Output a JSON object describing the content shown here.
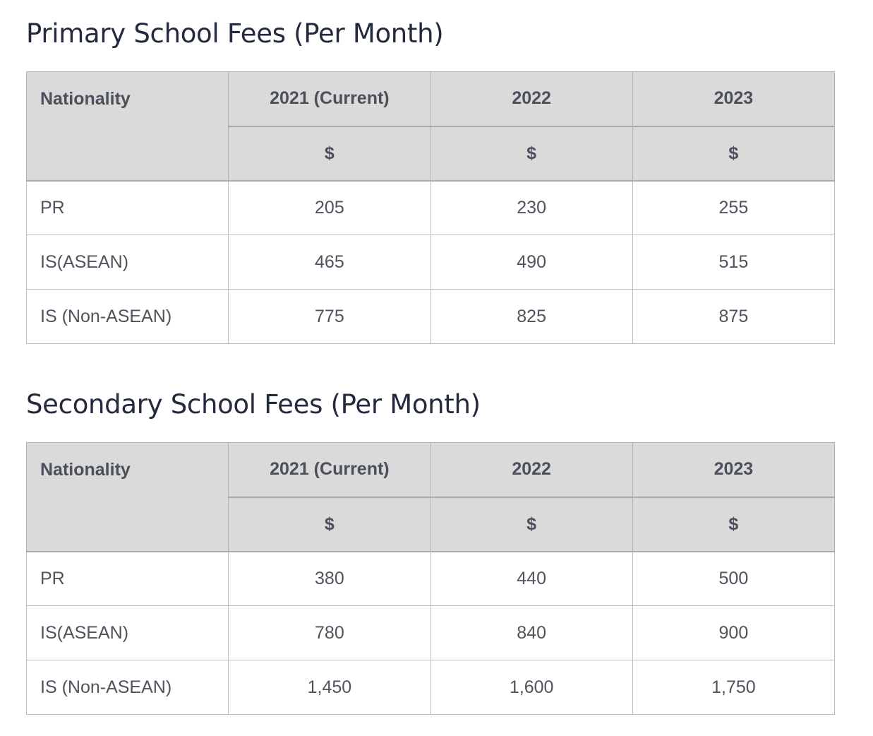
{
  "primary": {
    "title": "Primary School Fees (Per Month)",
    "header": {
      "nationality": "Nationality",
      "years": [
        "2021 (Current)",
        "2022",
        "2023"
      ],
      "currency": [
        "$",
        "$",
        "$"
      ]
    },
    "rows": [
      {
        "nationality": "PR",
        "values": [
          "205",
          "230",
          "255"
        ]
      },
      {
        "nationality": "IS(ASEAN)",
        "values": [
          "465",
          "490",
          "515"
        ]
      },
      {
        "nationality": "IS (Non-ASEAN)",
        "values": [
          "775",
          "825",
          "875"
        ]
      }
    ]
  },
  "secondary": {
    "title": "Secondary School Fees (Per Month)",
    "header": {
      "nationality": "Nationality",
      "years": [
        "2021 (Current)",
        "2022",
        "2023"
      ],
      "currency": [
        "$",
        "$",
        "$"
      ]
    },
    "rows": [
      {
        "nationality": "PR",
        "values": [
          "380",
          "440",
          "500"
        ]
      },
      {
        "nationality": "IS(ASEAN)",
        "values": [
          "780",
          "840",
          "900"
        ]
      },
      {
        "nationality": "IS (Non-ASEAN)",
        "values": [
          "1,450",
          "1,600",
          "1,750"
        ]
      }
    ]
  }
}
